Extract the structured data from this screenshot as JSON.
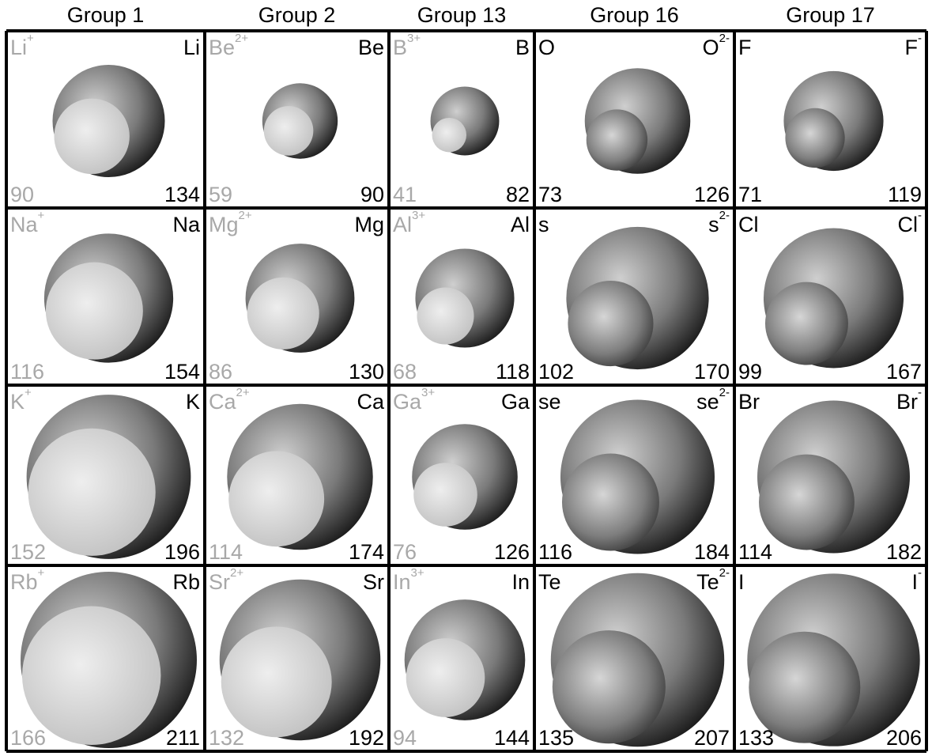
{
  "headers": [
    "Group 1",
    "Group 2",
    "Group 13",
    "Group 16",
    "Group 17"
  ],
  "rows": [
    [
      {
        "atom": "Li",
        "ion": "Li",
        "charge": "+",
        "atom_r": 134,
        "ion_r": 90,
        "type": "cation"
      },
      {
        "atom": "Be",
        "ion": "Be",
        "charge": "2+",
        "atom_r": 90,
        "ion_r": 59,
        "type": "cation"
      },
      {
        "atom": "B",
        "ion": "B",
        "charge": "3+",
        "atom_r": 82,
        "ion_r": 41,
        "type": "cation"
      },
      {
        "atom": "O",
        "ion": "O",
        "charge": "2-",
        "atom_r": 73,
        "ion_r": 126,
        "type": "anion"
      },
      {
        "atom": "F",
        "ion": "F",
        "charge": "-",
        "atom_r": 71,
        "ion_r": 119,
        "type": "anion"
      }
    ],
    [
      {
        "atom": "Na",
        "ion": "Na",
        "charge": "+",
        "atom_r": 154,
        "ion_r": 116,
        "type": "cation"
      },
      {
        "atom": "Mg",
        "ion": "Mg",
        "charge": "2+",
        "atom_r": 130,
        "ion_r": 86,
        "type": "cation"
      },
      {
        "atom": "Al",
        "ion": "Al",
        "charge": "3+",
        "atom_r": 118,
        "ion_r": 68,
        "type": "cation"
      },
      {
        "atom": "s",
        "ion": "s",
        "charge": "2-",
        "atom_r": 102,
        "ion_r": 170,
        "type": "anion"
      },
      {
        "atom": "Cl",
        "ion": "Cl",
        "charge": "-",
        "atom_r": 99,
        "ion_r": 167,
        "type": "anion"
      }
    ],
    [
      {
        "atom": "K",
        "ion": "K",
        "charge": "+",
        "atom_r": 196,
        "ion_r": 152,
        "type": "cation"
      },
      {
        "atom": "Ca",
        "ion": "Ca",
        "charge": "2+",
        "atom_r": 174,
        "ion_r": 114,
        "type": "cation"
      },
      {
        "atom": "Ga",
        "ion": "Ga",
        "charge": "3+",
        "atom_r": 126,
        "ion_r": 76,
        "type": "cation"
      },
      {
        "atom": "se",
        "ion": "se",
        "charge": "2-",
        "atom_r": 116,
        "ion_r": 184,
        "type": "anion"
      },
      {
        "atom": "Br",
        "ion": "Br",
        "charge": "-",
        "atom_r": 114,
        "ion_r": 182,
        "type": "anion"
      }
    ],
    [
      {
        "atom": "Rb",
        "ion": "Rb",
        "charge": "+",
        "atom_r": 211,
        "ion_r": 166,
        "type": "cation"
      },
      {
        "atom": "Sr",
        "ion": "Sr",
        "charge": "2+",
        "atom_r": 192,
        "ion_r": 132,
        "type": "cation"
      },
      {
        "atom": "In",
        "ion": "In",
        "charge": "3+",
        "atom_r": 144,
        "ion_r": 94,
        "type": "cation"
      },
      {
        "atom": "Te",
        "ion": "Te",
        "charge": "2-",
        "atom_r": 135,
        "ion_r": 207,
        "type": "anion"
      },
      {
        "atom": "I",
        "ion": "I",
        "charge": "-",
        "atom_r": 133,
        "ion_r": 206,
        "type": "anion"
      }
    ]
  ],
  "colors": {
    "cation_label": "#a8a8a8",
    "atom_label": "#000000",
    "sphere_dark": "#111111",
    "sphere_mid": "#7a7a7a",
    "sphere_light": "#cfcfcf",
    "cation_sphere_light": "#eeeeee",
    "cation_sphere_dark": "#bdbdbd",
    "border": "#000000"
  }
}
